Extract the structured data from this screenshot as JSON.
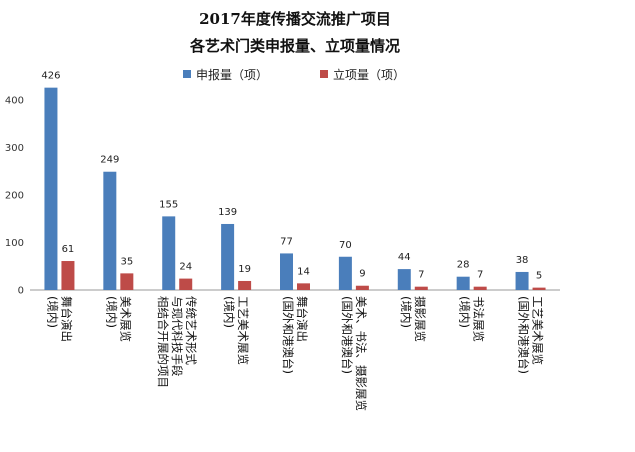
{
  "chart_data": {
    "type": "bar",
    "title_lines": [
      "2017年度传播交流推广项目",
      "各艺术门类申报量、立项量情况"
    ],
    "categories": [
      [
        "(境内)",
        "舞台演出"
      ],
      [
        "(境内)",
        "美术展览"
      ],
      [
        "相结合开展的项目",
        "与现代科技手段",
        "传统艺术形式"
      ],
      [
        "(境内)",
        "工艺美术展览"
      ],
      [
        "(国外和港澳台)",
        "舞台演出"
      ],
      [
        "(国外和港澳台)",
        "美术、书法、摄影展览"
      ],
      [
        "(境内)",
        "摄影展览"
      ],
      [
        "(境内)",
        "书法展览"
      ],
      [
        "(国外和港澳台)",
        "工艺美术展览"
      ]
    ],
    "series": [
      {
        "name": "申报量（项）",
        "color": "#4a7ebb",
        "values": [
          426,
          249,
          155,
          139,
          77,
          70,
          44,
          28,
          38
        ]
      },
      {
        "name": "立项量（项）",
        "color": "#be4b48",
        "values": [
          61,
          35,
          24,
          19,
          14,
          9,
          7,
          7,
          5
        ]
      }
    ],
    "yticks": [
      0,
      100,
      200,
      300,
      400
    ],
    "ylim": [
      0,
      440
    ],
    "grid": false,
    "legend_position": "top"
  }
}
